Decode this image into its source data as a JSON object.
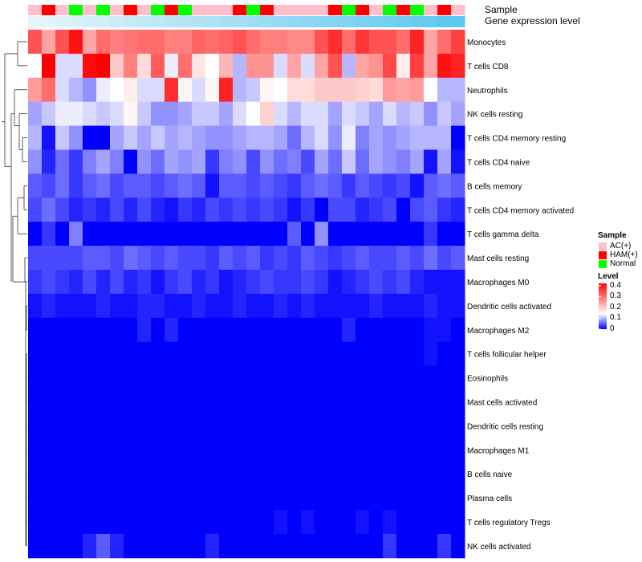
{
  "chart_data": {
    "type": "heatmap",
    "title": "",
    "annotation_labels": {
      "sample": "Sample",
      "gene_expression": "Gene expression level"
    },
    "sample_legend": {
      "title": "Sample",
      "groups": [
        {
          "name": "AC(+)",
          "color": "#ffc0cb"
        },
        {
          "name": "HAM(+)",
          "color": "#ff0000"
        },
        {
          "name": "Normal",
          "color": "#00ff00"
        }
      ]
    },
    "level_legend": {
      "title": "Level",
      "ticks": [
        "0.4",
        "0.3",
        "0.2",
        "0.1",
        "0"
      ],
      "tick_values": [
        0.4,
        0.3,
        0.2,
        0.1,
        0
      ],
      "range": [
        0,
        0.42
      ],
      "colors": {
        "low": "#0000ff",
        "mid": "#ffffff",
        "high": "#ff0000",
        "mid_value": 0.14
      }
    },
    "columns": {
      "count": 32,
      "sample_groups": [
        "AC(+)",
        "HAM(+)",
        "AC(+)",
        "Normal",
        "AC(+)",
        "Normal",
        "AC(+)",
        "HAM(+)",
        "AC(+)",
        "Normal",
        "HAM(+)",
        "Normal",
        "AC(+)",
        "AC(+)",
        "AC(+)",
        "HAM(+)",
        "Normal",
        "HAM(+)",
        "AC(+)",
        "AC(+)",
        "AC(+)",
        "AC(+)",
        "HAM(+)",
        "Normal",
        "HAM(+)",
        "AC(+)",
        "Normal",
        "HAM(+)",
        "Normal",
        "AC(+)",
        "HAM(+)",
        "AC(+)"
      ],
      "gene_expression_color": "#5bc8f0"
    },
    "rows": [
      {
        "name": "Monocytes",
        "values": [
          0.33,
          0.24,
          0.33,
          0.4,
          0.24,
          0.3,
          0.28,
          0.29,
          0.3,
          0.3,
          0.28,
          0.28,
          0.31,
          0.3,
          0.31,
          0.33,
          0.3,
          0.28,
          0.28,
          0.27,
          0.27,
          0.33,
          0.37,
          0.3,
          0.36,
          0.33,
          0.33,
          0.3,
          0.38,
          0.24,
          0.3,
          0.35
        ]
      },
      {
        "name": "T cells CD8",
        "values": [
          0.14,
          0.42,
          0.12,
          0.12,
          0.41,
          0.42,
          0.2,
          0.28,
          0.18,
          0.32,
          0.13,
          0.3,
          0.17,
          0.14,
          0.22,
          0.1,
          0.26,
          0.26,
          0.12,
          0.24,
          0.12,
          0.24,
          0.33,
          0.1,
          0.24,
          0.26,
          0.34,
          0.16,
          0.35,
          0.24,
          0.4,
          0.38
        ]
      },
      {
        "name": "Neutrophils",
        "values": [
          0.25,
          0.3,
          0.12,
          0.1,
          0.08,
          0.13,
          0.14,
          0.16,
          0.12,
          0.12,
          0.37,
          0.15,
          0.12,
          0.15,
          0.38,
          0.1,
          0.11,
          0.15,
          0.14,
          0.18,
          0.18,
          0.2,
          0.2,
          0.2,
          0.19,
          0.18,
          0.25,
          0.24,
          0.25,
          0.14,
          0.1,
          0.1
        ]
      },
      {
        "name": "NK cells resting",
        "values": [
          0.09,
          0.11,
          0.13,
          0.13,
          0.12,
          0.11,
          0.12,
          0.15,
          0.11,
          0.08,
          0.08,
          0.09,
          0.11,
          0.11,
          0.09,
          0.12,
          0.14,
          0.19,
          0.12,
          0.1,
          0.12,
          0.12,
          0.09,
          0.12,
          0.11,
          0.09,
          0.12,
          0.1,
          0.11,
          0.08,
          0.11,
          0.09
        ]
      },
      {
        "name": "T cells CD4 memory resting",
        "values": [
          0.1,
          0.01,
          0.11,
          0.08,
          0.0,
          0.0,
          0.09,
          0.11,
          0.09,
          0.11,
          0.09,
          0.1,
          0.09,
          0.08,
          0.08,
          0.09,
          0.1,
          0.1,
          0.09,
          0.06,
          0.1,
          0.12,
          0.08,
          0.13,
          0.07,
          0.09,
          0.08,
          0.09,
          0.1,
          0.1,
          0.1,
          0.0
        ]
      },
      {
        "name": "T cells CD4 naive",
        "values": [
          0.08,
          0.02,
          0.06,
          0.03,
          0.07,
          0.09,
          0.07,
          0.0,
          0.08,
          0.06,
          0.09,
          0.08,
          0.09,
          0.03,
          0.07,
          0.08,
          0.04,
          0.08,
          0.06,
          0.07,
          0.04,
          0.09,
          0.06,
          0.11,
          0.06,
          0.09,
          0.08,
          0.07,
          0.09,
          0.01,
          0.09,
          0.01
        ]
      },
      {
        "name": "B cells memory",
        "values": [
          0.05,
          0.04,
          0.06,
          0.03,
          0.05,
          0.06,
          0.04,
          0.05,
          0.05,
          0.04,
          0.05,
          0.06,
          0.05,
          0.01,
          0.05,
          0.05,
          0.04,
          0.05,
          0.04,
          0.03,
          0.05,
          0.06,
          0.05,
          0.03,
          0.05,
          0.04,
          0.03,
          0.04,
          0.01,
          0.05,
          0.06,
          0.05
        ]
      },
      {
        "name": "T cells CD4 memory activated",
        "values": [
          0.04,
          0.06,
          0.04,
          0.02,
          0.03,
          0.02,
          0.04,
          0.02,
          0.04,
          0.02,
          0.01,
          0.03,
          0.02,
          0.04,
          0.03,
          0.04,
          0.03,
          0.04,
          0.03,
          0.01,
          0.03,
          0.0,
          0.04,
          0.04,
          0.02,
          0.03,
          0.04,
          0.0,
          0.04,
          0.05,
          0.03,
          0.02
        ]
      },
      {
        "name": "T cells gamma delta",
        "values": [
          0.0,
          0.03,
          0.0,
          0.07,
          0.0,
          0.0,
          0.0,
          0.0,
          0.0,
          0.0,
          0.0,
          0.0,
          0.0,
          0.0,
          0.0,
          0.0,
          0.0,
          0.0,
          0.0,
          0.05,
          0.0,
          0.08,
          0.0,
          0.0,
          0.0,
          0.0,
          0.0,
          0.0,
          0.0,
          0.03,
          0.0,
          0.0
        ]
      },
      {
        "name": "Mast cells resting",
        "values": [
          0.04,
          0.04,
          0.04,
          0.04,
          0.05,
          0.05,
          0.04,
          0.06,
          0.05,
          0.04,
          0.05,
          0.04,
          0.04,
          0.03,
          0.05,
          0.04,
          0.05,
          0.03,
          0.04,
          0.03,
          0.05,
          0.04,
          0.03,
          0.04,
          0.05,
          0.04,
          0.04,
          0.05,
          0.04,
          0.06,
          0.04,
          0.05
        ]
      },
      {
        "name": "Macrophages M0",
        "values": [
          0.03,
          0.04,
          0.03,
          0.02,
          0.04,
          0.02,
          0.04,
          0.02,
          0.03,
          0.01,
          0.03,
          0.04,
          0.02,
          0.03,
          0.01,
          0.02,
          0.03,
          0.04,
          0.03,
          0.03,
          0.04,
          0.03,
          0.01,
          0.02,
          0.03,
          0.04,
          0.03,
          0.04,
          0.02,
          0.01,
          0.01,
          0.01
        ]
      },
      {
        "name": "Dendritic cells activated",
        "values": [
          0.01,
          0.02,
          0.01,
          0.01,
          0.01,
          0.02,
          0.01,
          0.01,
          0.02,
          0.02,
          0.01,
          0.01,
          0.02,
          0.01,
          0.01,
          0.02,
          0.01,
          0.01,
          0.02,
          0.01,
          0.02,
          0.01,
          0.01,
          0.01,
          0.01,
          0.02,
          0.01,
          0.01,
          0.01,
          0.02,
          0.01,
          0.01
        ]
      },
      {
        "name": "Macrophages M2",
        "values": [
          0.0,
          0.0,
          0.0,
          0.0,
          0.0,
          0.0,
          0.0,
          0.0,
          0.02,
          0.0,
          0.02,
          0.0,
          0.0,
          0.0,
          0.0,
          0.0,
          0.0,
          0.0,
          0.0,
          0.0,
          0.0,
          0.0,
          0.0,
          0.02,
          0.0,
          0.0,
          0.0,
          0.0,
          0.0,
          0.01,
          0.01,
          0.0
        ]
      },
      {
        "name": "T cells follicular helper",
        "values": [
          0.0,
          0.0,
          0.0,
          0.0,
          0.0,
          0.0,
          0.0,
          0.0,
          0.0,
          0.0,
          0.0,
          0.0,
          0.0,
          0.0,
          0.0,
          0.0,
          0.0,
          0.0,
          0.0,
          0.0,
          0.0,
          0.0,
          0.0,
          0.0,
          0.0,
          0.0,
          0.0,
          0.0,
          0.0,
          0.01,
          0.0,
          0.0
        ]
      },
      {
        "name": "Eosinophils",
        "values": [
          0.0,
          0.0,
          0.0,
          0.0,
          0.0,
          0.0,
          0.0,
          0.0,
          0.0,
          0.0,
          0.0,
          0.0,
          0.0,
          0.0,
          0.0,
          0.0,
          0.0,
          0.0,
          0.0,
          0.0,
          0.0,
          0.0,
          0.0,
          0.0,
          0.0,
          0.0,
          0.0,
          0.0,
          0.0,
          0.0,
          0.0,
          0.0
        ]
      },
      {
        "name": "Mast cells activated",
        "values": [
          0.0,
          0.0,
          0.0,
          0.0,
          0.0,
          0.0,
          0.0,
          0.0,
          0.0,
          0.0,
          0.0,
          0.0,
          0.0,
          0.0,
          0.0,
          0.0,
          0.0,
          0.0,
          0.0,
          0.0,
          0.0,
          0.0,
          0.0,
          0.0,
          0.0,
          0.0,
          0.0,
          0.0,
          0.0,
          0.0,
          0.0,
          0.0
        ]
      },
      {
        "name": "Dendritic cells resting",
        "values": [
          0.0,
          0.0,
          0.0,
          0.0,
          0.0,
          0.0,
          0.0,
          0.0,
          0.0,
          0.0,
          0.0,
          0.0,
          0.0,
          0.0,
          0.0,
          0.0,
          0.0,
          0.0,
          0.0,
          0.0,
          0.0,
          0.0,
          0.0,
          0.0,
          0.0,
          0.0,
          0.0,
          0.0,
          0.0,
          0.0,
          0.0,
          0.0
        ]
      },
      {
        "name": "Macrophages M1",
        "values": [
          0.0,
          0.0,
          0.0,
          0.0,
          0.0,
          0.0,
          0.0,
          0.0,
          0.0,
          0.0,
          0.0,
          0.0,
          0.0,
          0.0,
          0.0,
          0.0,
          0.0,
          0.0,
          0.0,
          0.0,
          0.0,
          0.0,
          0.0,
          0.0,
          0.0,
          0.0,
          0.0,
          0.0,
          0.0,
          0.0,
          0.0,
          0.0
        ]
      },
      {
        "name": "B cells naive",
        "values": [
          0.0,
          0.0,
          0.0,
          0.0,
          0.0,
          0.0,
          0.0,
          0.0,
          0.0,
          0.0,
          0.0,
          0.0,
          0.0,
          0.0,
          0.0,
          0.0,
          0.0,
          0.0,
          0.0,
          0.0,
          0.0,
          0.0,
          0.0,
          0.0,
          0.0,
          0.0,
          0.0,
          0.0,
          0.0,
          0.0,
          0.0,
          0.0
        ]
      },
      {
        "name": "Plasma cells",
        "values": [
          0.0,
          0.0,
          0.0,
          0.0,
          0.0,
          0.0,
          0.0,
          0.0,
          0.0,
          0.0,
          0.0,
          0.0,
          0.0,
          0.0,
          0.0,
          0.0,
          0.0,
          0.0,
          0.0,
          0.0,
          0.0,
          0.0,
          0.0,
          0.0,
          0.0,
          0.0,
          0.0,
          0.0,
          0.0,
          0.0,
          0.0,
          0.0
        ]
      },
      {
        "name": "T cells regulatory  Tregs",
        "values": [
          0.0,
          0.0,
          0.0,
          0.0,
          0.0,
          0.0,
          0.0,
          0.0,
          0.0,
          0.0,
          0.0,
          0.0,
          0.0,
          0.0,
          0.0,
          0.0,
          0.0,
          0.0,
          0.01,
          0.0,
          0.01,
          0.0,
          0.0,
          0.0,
          0.01,
          0.0,
          0.01,
          0.0,
          0.0,
          0.0,
          0.0,
          0.0
        ]
      },
      {
        "name": "NK cells activated",
        "values": [
          0.0,
          0.0,
          0.0,
          0.0,
          0.02,
          0.05,
          0.02,
          0.0,
          0.0,
          0.0,
          0.0,
          0.0,
          0.0,
          0.02,
          0.0,
          0.0,
          0.0,
          0.0,
          0.0,
          0.0,
          0.0,
          0.0,
          0.0,
          0.0,
          0.0,
          0.0,
          0.03,
          0.0,
          0.0,
          0.0,
          0.03,
          0.0
        ]
      }
    ]
  }
}
